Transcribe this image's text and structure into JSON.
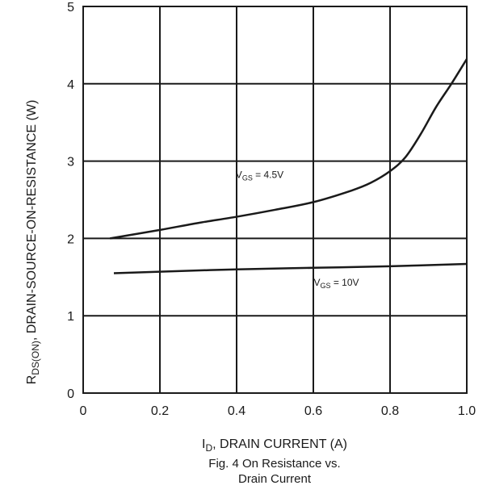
{
  "chart_data": {
    "type": "line",
    "xlabel": "I_D, DRAIN CURRENT (A)",
    "ylabel": "R_DS(ON), DRAIN-SOURCE-ON-RESISTANCE (W)",
    "xlim": [
      0,
      1.0
    ],
    "ylim": [
      0,
      5
    ],
    "xticks": [
      "0",
      "0.2",
      "0.4",
      "0.6",
      "0.8",
      "1.0"
    ],
    "yticks": [
      "0",
      "1",
      "2",
      "3",
      "4",
      "5"
    ],
    "grid": true,
    "caption": [
      "Fig. 4  On Resistance vs.",
      "Drain Current"
    ],
    "series": [
      {
        "name": "V_GS = 4.5V",
        "x": [
          0.07,
          0.2,
          0.3,
          0.4,
          0.5,
          0.6,
          0.7,
          0.75,
          0.8,
          0.84,
          0.88,
          0.92,
          0.96,
          1.0
        ],
        "y": [
          2.0,
          2.11,
          2.2,
          2.28,
          2.37,
          2.47,
          2.62,
          2.72,
          2.87,
          3.05,
          3.35,
          3.7,
          4.0,
          4.32
        ]
      },
      {
        "name": "V_GS = 10V",
        "x": [
          0.08,
          0.2,
          0.4,
          0.6,
          0.8,
          1.0
        ],
        "y": [
          1.55,
          1.57,
          1.6,
          1.62,
          1.64,
          1.67
        ]
      }
    ],
    "annotations": [
      {
        "main": "V",
        "sub": "GS",
        "rest": " = 4.5V",
        "at_x": 0.46,
        "at_y": 2.78
      },
      {
        "main": "V",
        "sub": "GS",
        "rest": " = 10V",
        "at_x": 0.66,
        "at_y": 1.39
      }
    ],
    "ylabel_parts": {
      "main": "R",
      "sub": "DS(ON)",
      "rest": ", DRAIN-SOURCE-ON-RESISTANCE (W)"
    },
    "xlabel_parts": {
      "main": "I",
      "sub": "D",
      "rest": ", DRAIN CURRENT (A)"
    }
  }
}
